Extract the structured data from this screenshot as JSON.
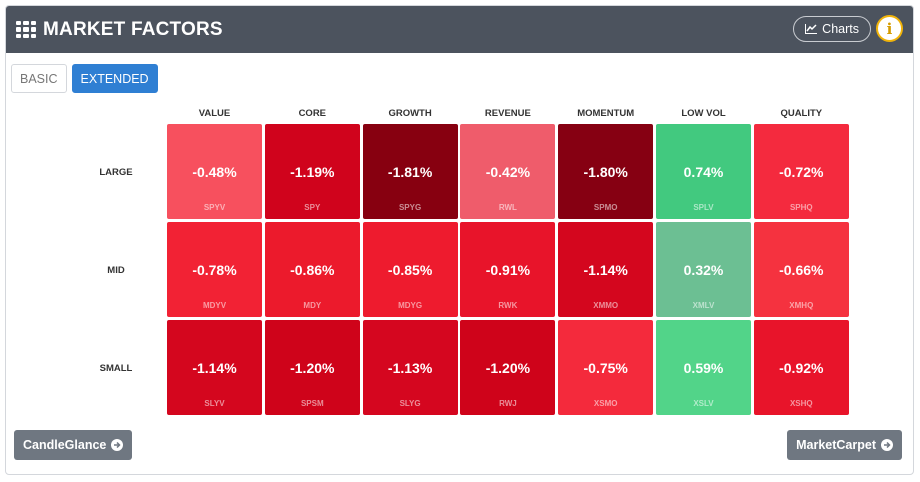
{
  "header": {
    "title": "MARKET FACTORS",
    "charts_label": "Charts",
    "info_label": "i"
  },
  "tabs": [
    {
      "label": "BASIC",
      "active": false
    },
    {
      "label": "EXTENDED",
      "active": true
    }
  ],
  "columns": [
    "VALUE",
    "CORE",
    "GROWTH",
    "REVENUE",
    "MOMENTUM",
    "LOW VOL",
    "QUALITY"
  ],
  "rows": [
    {
      "label": "LARGE",
      "cells": [
        {
          "value": "-0.48%",
          "ticker": "SPYV",
          "color": "#f7505e"
        },
        {
          "value": "-1.19%",
          "ticker": "SPY",
          "color": "#d0031c"
        },
        {
          "value": "-1.81%",
          "ticker": "SPYG",
          "color": "#870010"
        },
        {
          "value": "-0.42%",
          "ticker": "RWL",
          "color": "#ef5c6b"
        },
        {
          "value": "-1.80%",
          "ticker": "SPMO",
          "color": "#860012"
        },
        {
          "value": "0.74%",
          "ticker": "SPLV",
          "color": "#42c97f"
        },
        {
          "value": "-0.72%",
          "ticker": "SPHQ",
          "color": "#f42a3e"
        }
      ]
    },
    {
      "label": "MID",
      "cells": [
        {
          "value": "-0.78%",
          "ticker": "MDYV",
          "color": "#f22234"
        },
        {
          "value": "-0.86%",
          "ticker": "MDY",
          "color": "#ec1a2c"
        },
        {
          "value": "-0.85%",
          "ticker": "MDYG",
          "color": "#ee1b2e"
        },
        {
          "value": "-0.91%",
          "ticker": "RWK",
          "color": "#e8142a"
        },
        {
          "value": "-1.14%",
          "ticker": "XMMO",
          "color": "#d4061e"
        },
        {
          "value": "0.32%",
          "ticker": "XMLV",
          "color": "#6cbf93"
        },
        {
          "value": "-0.66%",
          "ticker": "XMHQ",
          "color": "#f5323f"
        }
      ]
    },
    {
      "label": "SMALL",
      "cells": [
        {
          "value": "-1.14%",
          "ticker": "SLYV",
          "color": "#d4061e"
        },
        {
          "value": "-1.20%",
          "ticker": "SPSM",
          "color": "#cf031a"
        },
        {
          "value": "-1.13%",
          "ticker": "SLYG",
          "color": "#d5061f"
        },
        {
          "value": "-1.20%",
          "ticker": "RWJ",
          "color": "#cf031a"
        },
        {
          "value": "-0.75%",
          "ticker": "XSMO",
          "color": "#f42a3c"
        },
        {
          "value": "0.59%",
          "ticker": "XSLV",
          "color": "#52d489"
        },
        {
          "value": "-0.92%",
          "ticker": "XSHQ",
          "color": "#e8142a"
        }
      ]
    }
  ],
  "footer": {
    "left_label": "CandleGlance",
    "right_label": "MarketCarpet"
  }
}
